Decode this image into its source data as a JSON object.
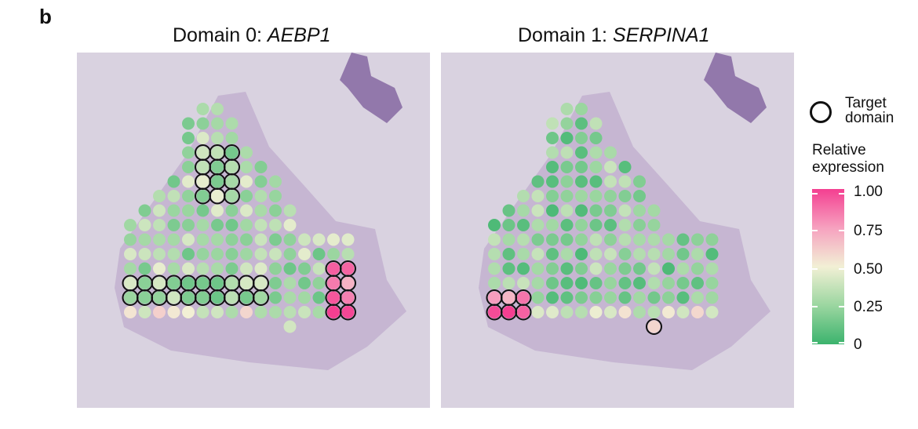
{
  "figure": {
    "panel_letter": "b"
  },
  "chart_data": [
    {
      "type": "heatmap",
      "title_prefix": "Domain 0: ",
      "gene": "AEBP1",
      "color_scale": "relative expression, 0 to 1"
    },
    {
      "type": "heatmap",
      "title_prefix": "Domain 1: ",
      "gene": "SERPINA1",
      "color_scale": "relative expression, 0 to 1"
    }
  ],
  "legend": {
    "target_line1": "Target",
    "target_line2": "domain",
    "expr_line1": "Relative",
    "expr_line2": "expression",
    "ticks": [
      "1.00",
      "0.75",
      "0.50",
      "0.25",
      "0"
    ]
  },
  "colors": {
    "low": "#3bb36d",
    "lowmid": "#9bd6a0",
    "mid": "#f2f0d5",
    "highmid": "#f6a1bf",
    "high": "#f43f91",
    "target_outline": "#111111",
    "tissue_background": "#d9d2e0",
    "tissue_stain": "#c3b2d0"
  }
}
